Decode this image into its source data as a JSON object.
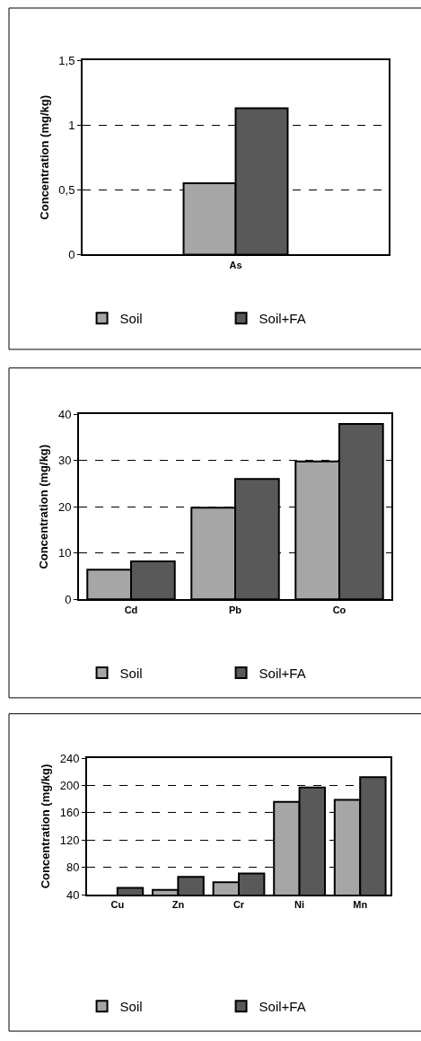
{
  "chart_data": [
    {
      "type": "bar",
      "ylabel": "Concentration (mg/kg)",
      "categories": [
        "As"
      ],
      "series": [
        {
          "name": "Soil",
          "color": "#a6a6a6",
          "values": [
            0.55
          ]
        },
        {
          "name": "Soil+FA",
          "color": "#595959",
          "values": [
            1.13
          ]
        }
      ],
      "ylim": [
        0,
        1.5
      ],
      "yticks": [
        0,
        {
          "value": 0.5,
          "label": "0,5"
        },
        1,
        {
          "value": 1.5,
          "label": "1,5"
        }
      ],
      "grid": "y",
      "legend": "bottom"
    },
    {
      "type": "bar",
      "ylabel": "Concentration (mg/kg)",
      "categories": [
        "Cd",
        "Pb",
        "Co"
      ],
      "series": [
        {
          "name": "Soil",
          "color": "#a6a6a6",
          "values": [
            6.4,
            19.8,
            29.8
          ]
        },
        {
          "name": "Soil+FA",
          "color": "#595959",
          "values": [
            8.2,
            26,
            37.9
          ]
        }
      ],
      "ylim": [
        0,
        40
      ],
      "yticks": [
        0,
        10,
        20,
        30,
        40
      ],
      "grid": "y",
      "legend": "bottom"
    },
    {
      "type": "bar",
      "ylabel": "Concentration (mg/kg)",
      "categories": [
        "Cu",
        "Zn",
        "Cr",
        "Ni",
        "Mn"
      ],
      "series": [
        {
          "name": "Soil",
          "color": "#a6a6a6",
          "values": [
            null,
            47,
            58,
            176,
            179
          ]
        },
        {
          "name": "Soil+FA",
          "color": "#595959",
          "values": [
            50,
            66,
            71,
            197,
            212
          ]
        }
      ],
      "ylim": [
        40,
        240
      ],
      "yticks": [
        40,
        80,
        120,
        160,
        200,
        240
      ],
      "grid": "y",
      "legend": "bottom"
    }
  ]
}
